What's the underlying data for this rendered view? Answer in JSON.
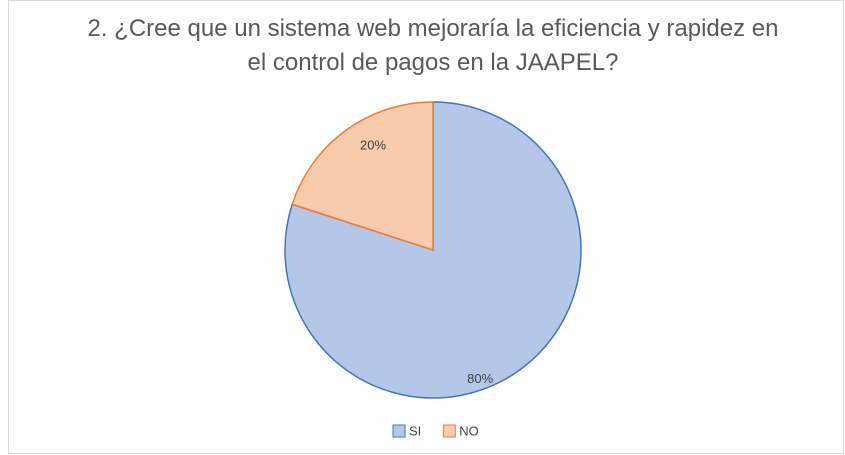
{
  "chart_data": {
    "type": "pie",
    "title": "2. ¿Cree que un sistema web mejoraría la eficiencia y rapidez en el control de pagos en la JAAPEL?",
    "categories": [
      "SI",
      "NO"
    ],
    "values": [
      80,
      20
    ],
    "value_labels": [
      "80%",
      "20%"
    ],
    "colors": [
      "#b4c7e7",
      "#f8cbad"
    ],
    "edge_colors": [
      "#4472c4",
      "#ed7d31"
    ],
    "legend": "bottom"
  }
}
